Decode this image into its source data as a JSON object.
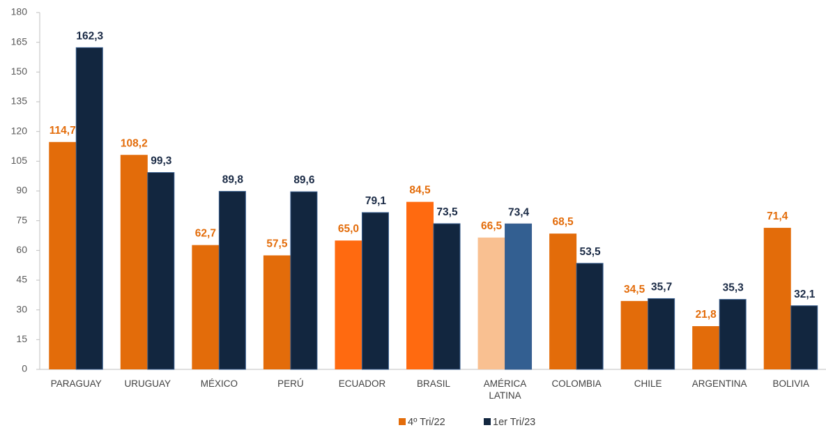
{
  "chart_data": {
    "type": "bar",
    "categories": [
      "PARAGUAY",
      "URUGUAY",
      "MÉXICO",
      "PERÚ",
      "ECUADOR",
      "BRASIL",
      "AMÉRICA LATINA",
      "COLOMBIA",
      "CHILE",
      "ARGENTINA",
      "BOLIVIA"
    ],
    "series": [
      {
        "name": "4º Tri/22",
        "color": "#e36c0a",
        "colors": [
          "#e36c0a",
          "#e36c0a",
          "#e36c0a",
          "#e36c0a",
          "#ff6a10",
          "#ff6a10",
          "#f9c091",
          "#e36c0a",
          "#e36c0a",
          "#e36c0a",
          "#e36c0a"
        ],
        "label_color": "#e36c0a",
        "values": [
          114.7,
          108.2,
          62.7,
          57.5,
          65.0,
          84.5,
          66.5,
          68.5,
          34.5,
          21.8,
          71.4
        ],
        "value_labels": [
          "114,7",
          "108,2",
          "62,7",
          "57,5",
          "65,0",
          "84,5",
          "66,5",
          "68,5",
          "34,5",
          "21,8",
          "71,4"
        ]
      },
      {
        "name": "1er Tri/23",
        "color": "#12263f",
        "colors": [
          "#12263f",
          "#12263f",
          "#12263f",
          "#12263f",
          "#12263f",
          "#12263f",
          "#335f91",
          "#12263f",
          "#12263f",
          "#12263f",
          "#12263f"
        ],
        "label_color": "#1a2a45",
        "values": [
          162.3,
          99.3,
          89.8,
          89.6,
          79.1,
          73.5,
          73.4,
          53.5,
          35.7,
          35.3,
          32.1
        ],
        "value_labels": [
          "162,3",
          "99,3",
          "89,8",
          "89,6",
          "79,1",
          "73,5",
          "73,4",
          "53,5",
          "35,7",
          "35,3",
          "32,1"
        ]
      }
    ],
    "ylim": [
      0,
      180
    ],
    "yticks": [
      0,
      15,
      30,
      45,
      60,
      75,
      90,
      105,
      120,
      135,
      150,
      165,
      180
    ],
    "legend": "bottom",
    "grid": false
  }
}
